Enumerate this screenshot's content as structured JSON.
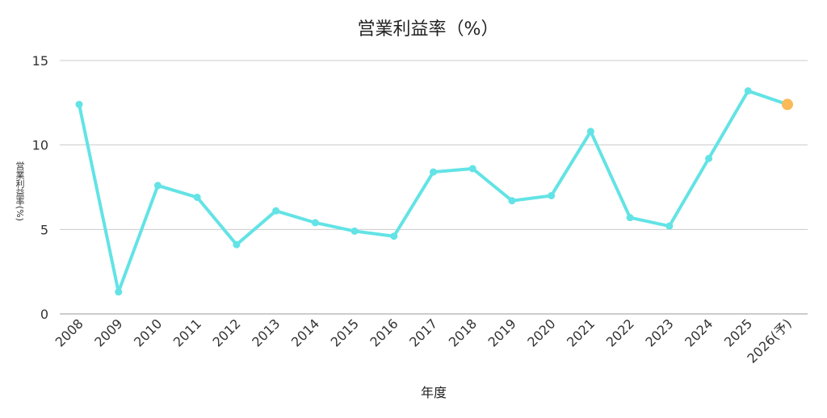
{
  "chart_data": {
    "type": "line",
    "title": "営業利益率（%）",
    "xlabel": "年度",
    "ylabel": "営業利益率(%)",
    "categories": [
      "2008",
      "2009",
      "2010",
      "2011",
      "2012",
      "2013",
      "2014",
      "2015",
      "2016",
      "2017",
      "2018",
      "2019",
      "2020",
      "2021",
      "2022",
      "2023",
      "2024",
      "2025",
      "2026(予)"
    ],
    "series": [
      {
        "name": "営業利益率",
        "values": [
          12.4,
          1.3,
          7.6,
          6.9,
          4.1,
          6.1,
          5.4,
          4.9,
          4.6,
          8.4,
          8.6,
          6.7,
          7.0,
          10.8,
          5.7,
          5.2,
          9.2,
          13.2,
          12.4
        ]
      }
    ],
    "forecast_index": 18,
    "ylim": [
      0,
      15
    ],
    "yticks": [
      0,
      5,
      10,
      15
    ],
    "grid": true,
    "colors": {
      "line": "#63e3e5",
      "forecast": "#fbb957",
      "grid": "#cccccc"
    }
  }
}
